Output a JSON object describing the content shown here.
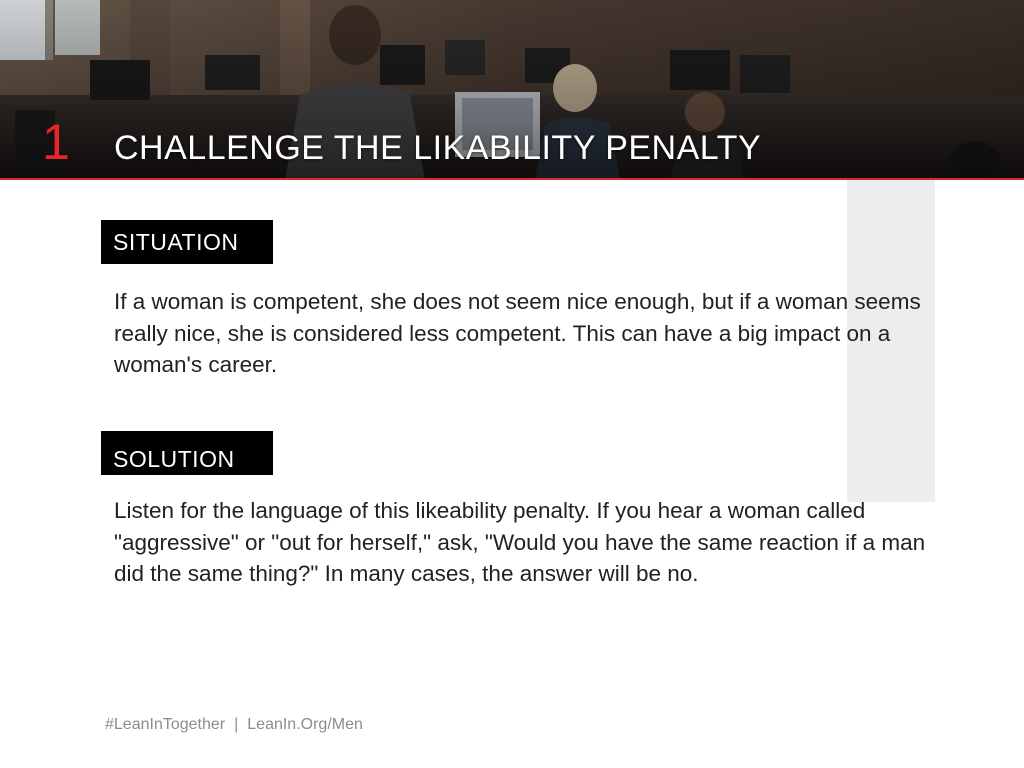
{
  "slide": {
    "number": "1",
    "title": "CHALLENGE THE LIKABILITY PENALTY",
    "colors": {
      "accent": "#e8262a",
      "label_bg": "#000000",
      "big_number": "#ededed",
      "footer_text": "#8c8c8c"
    }
  },
  "situation": {
    "label": "SITUATION",
    "text": "If a woman is competent, she does not seem nice enough, but if a woman seems really nice, she is considered less competent. This can have a big impact on a woman's career."
  },
  "solution": {
    "label": "SOLUTION",
    "text": "Listen for the language of this likeability penalty. If you hear a woman called \"aggressive\" or \"out for herself,\" ask, \"Would you have the same reaction if a man did the same thing?\" In many cases, the answer will be no."
  },
  "footer": {
    "hashtag": "#LeanInTogether",
    "separator": "|",
    "url": "LeanIn.Org/Men"
  }
}
